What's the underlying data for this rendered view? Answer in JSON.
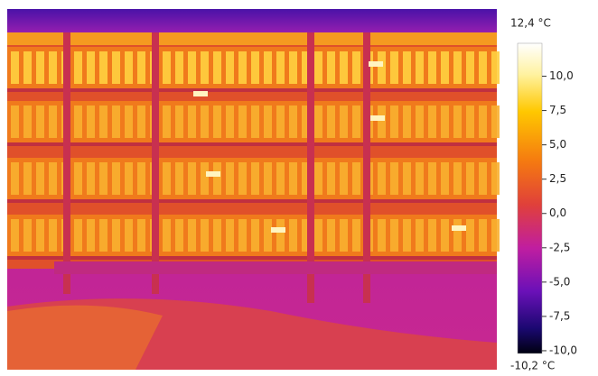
{
  "colorbar": {
    "range": [
      -10.2,
      12.4
    ],
    "max_label": "12,4 °C",
    "min_label": "-10,2 °C",
    "ticks": [
      {
        "value": 10,
        "label": "10,0"
      },
      {
        "value": 7.5,
        "label": "7,5"
      },
      {
        "value": 5,
        "label": "5,0"
      },
      {
        "value": 2.5,
        "label": "2,5"
      },
      {
        "value": 0,
        "label": "0,0"
      },
      {
        "value": -2.5,
        "label": "-2,5"
      },
      {
        "value": -5,
        "label": "-5,0"
      },
      {
        "value": -7.5,
        "label": "-7,5"
      },
      {
        "value": -10,
        "label": "-10,0"
      }
    ]
  }
}
